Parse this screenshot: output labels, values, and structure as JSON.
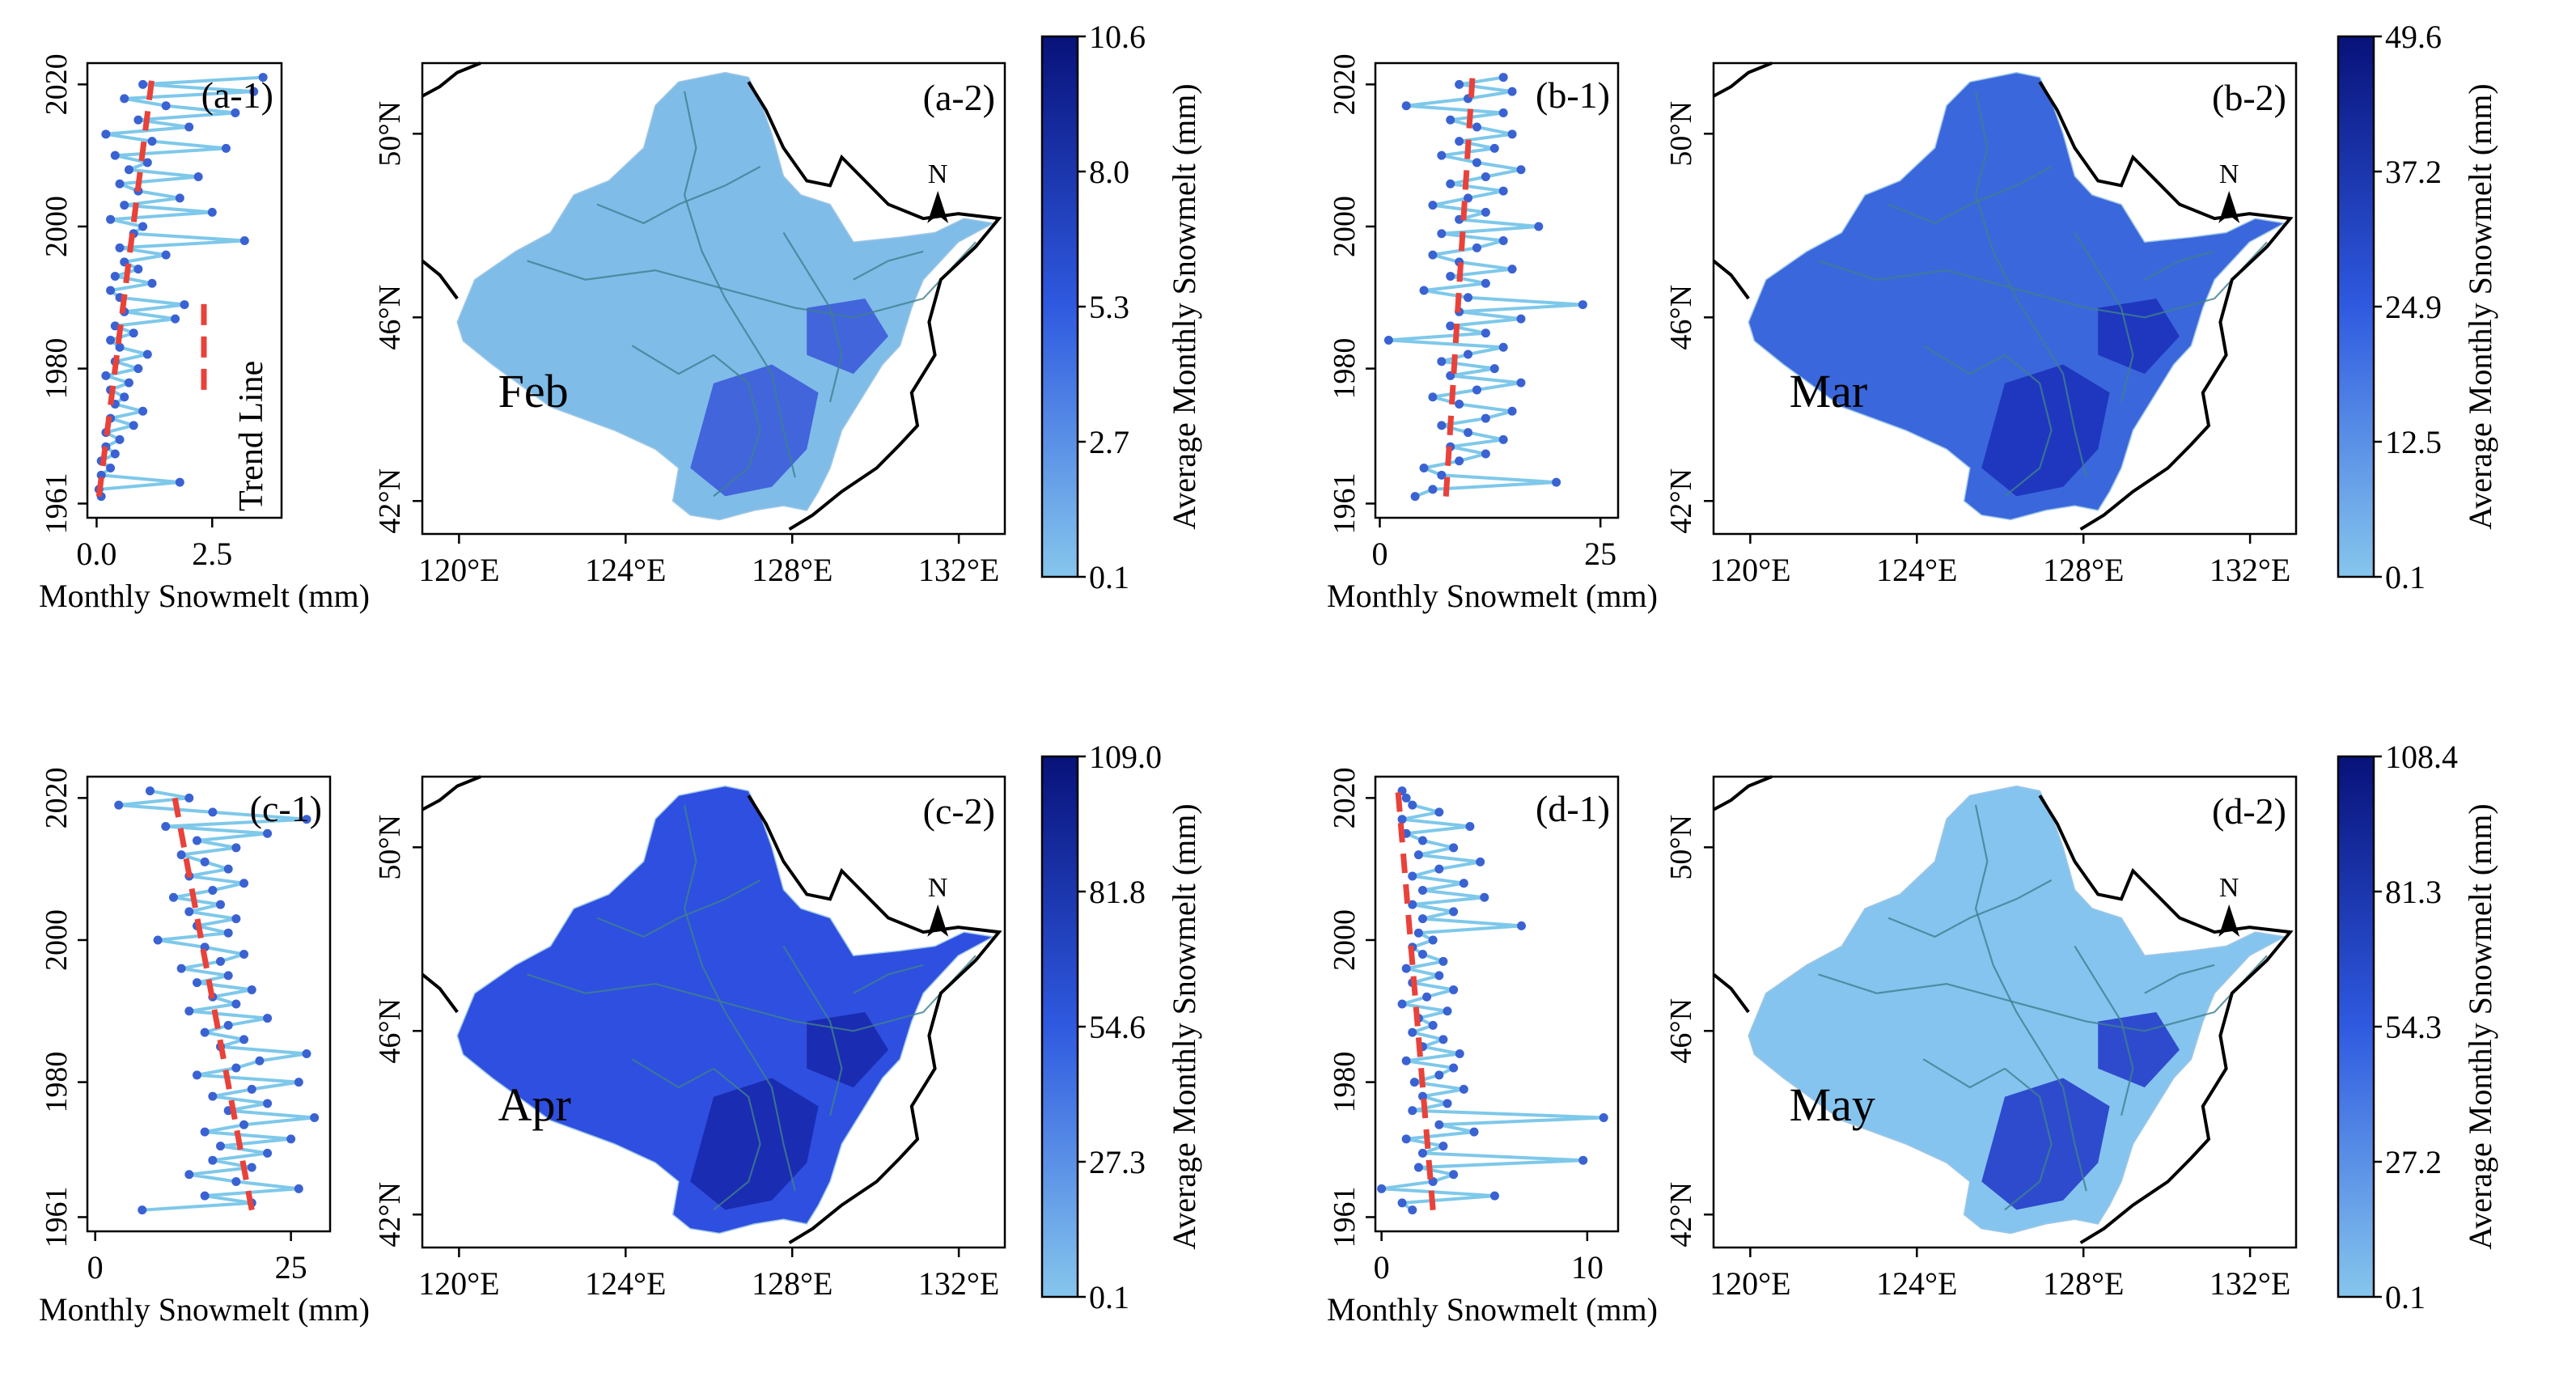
{
  "chart_data": [
    {
      "id": "a",
      "type": "line",
      "panel_label": "(a-1)",
      "xlabel": "Monthly Snowmelt (mm)",
      "xticks": [
        "0.0",
        "2.5"
      ],
      "xtick_values": [
        0,
        2.5
      ],
      "xlim": [
        -0.2,
        4.0
      ],
      "yticks": [
        "1961",
        "1980",
        "2000",
        "2020"
      ],
      "ytick_values": [
        1961,
        1980,
        2000,
        2020
      ],
      "ylim": [
        1959,
        2023
      ],
      "legend": "Trend Line",
      "series_color": "#7ec8ea",
      "trend_color": "#e8423a",
      "years": [
        1962,
        1963,
        1964,
        1965,
        1966,
        1967,
        1968,
        1969,
        1970,
        1971,
        1972,
        1973,
        1974,
        1975,
        1976,
        1977,
        1978,
        1979,
        1980,
        1981,
        1982,
        1983,
        1984,
        1985,
        1986,
        1987,
        1988,
        1989,
        1990,
        1991,
        1992,
        1993,
        1994,
        1995,
        1996,
        1997,
        1998,
        1999,
        2000,
        2001,
        2002,
        2003,
        2004,
        2005,
        2006,
        2007,
        2008,
        2009,
        2010,
        2011,
        2012,
        2013,
        2014,
        2015,
        2016,
        2017,
        2018,
        2019,
        2020,
        2021
      ],
      "values": [
        0.1,
        0.05,
        1.8,
        0.1,
        0.3,
        0.1,
        0.4,
        0.2,
        0.5,
        0.2,
        0.8,
        0.3,
        1.0,
        0.4,
        0.6,
        0.3,
        0.7,
        0.2,
        0.9,
        0.4,
        1.1,
        0.5,
        0.3,
        0.8,
        0.4,
        1.7,
        0.6,
        1.9,
        0.5,
        0.3,
        1.2,
        0.4,
        0.9,
        0.6,
        1.5,
        0.5,
        3.2,
        0.8,
        1.0,
        0.3,
        2.5,
        0.6,
        1.8,
        0.9,
        0.5,
        2.2,
        0.7,
        1.1,
        0.4,
        2.8,
        1.2,
        0.2,
        2.0,
        0.9,
        3.0,
        1.5,
        0.6,
        3.4,
        1.0,
        3.6
      ],
      "trend": [
        [
          1962,
          0.05
        ],
        [
          2021,
          1.2
        ]
      ]
    },
    {
      "id": "b",
      "type": "line",
      "panel_label": "(b-1)",
      "xlabel": "Monthly Snowmelt (mm)",
      "xticks": [
        "0",
        "25"
      ],
      "xtick_values": [
        0,
        25
      ],
      "xlim": [
        -0.5,
        27
      ],
      "yticks": [
        "1961",
        "1980",
        "2000",
        "2020"
      ],
      "ytick_values": [
        1961,
        1980,
        2000,
        2020
      ],
      "ylim": [
        1959,
        2023
      ],
      "series_color": "#7ec8ea",
      "trend_color": "#e8423a",
      "years": [
        1962,
        1963,
        1964,
        1965,
        1966,
        1967,
        1968,
        1969,
        1970,
        1971,
        1972,
        1973,
        1974,
        1975,
        1976,
        1977,
        1978,
        1979,
        1980,
        1981,
        1982,
        1983,
        1984,
        1985,
        1986,
        1987,
        1988,
        1989,
        1990,
        1991,
        1992,
        1993,
        1994,
        1995,
        1996,
        1997,
        1998,
        1999,
        2000,
        2001,
        2002,
        2003,
        2004,
        2005,
        2006,
        2007,
        2008,
        2009,
        2010,
        2011,
        2012,
        2013,
        2014,
        2015,
        2016,
        2017,
        2018,
        2019,
        2020,
        2021
      ],
      "values": [
        4,
        6,
        20,
        7,
        5,
        9,
        12,
        8,
        14,
        10,
        7,
        12,
        15,
        9,
        6,
        11,
        16,
        8,
        13,
        7,
        10,
        14,
        1,
        12,
        8,
        16,
        9,
        23,
        10,
        5,
        12,
        8,
        15,
        9,
        6,
        11,
        14,
        7,
        18,
        9,
        12,
        6,
        10,
        14,
        8,
        12,
        16,
        11,
        7,
        13,
        9,
        15,
        11,
        8,
        14,
        3,
        10,
        15,
        9,
        14
      ],
      "trend": [
        [
          1962,
          7.5
        ],
        [
          2021,
          10.5
        ]
      ]
    },
    {
      "id": "c",
      "type": "line",
      "panel_label": "(c-1)",
      "xlabel": "Monthly Snowmelt (mm)",
      "xticks": [
        "0",
        "25"
      ],
      "xtick_values": [
        0,
        25
      ],
      "xlim": [
        -1,
        30
      ],
      "yticks": [
        "1961",
        "1980",
        "2000",
        "2020"
      ],
      "ytick_values": [
        1961,
        1980,
        2000,
        2020
      ],
      "ylim": [
        1959,
        2023
      ],
      "series_color": "#7ec8ea",
      "trend_color": "#e8423a",
      "years": [
        1962,
        1963,
        1964,
        1965,
        1966,
        1967,
        1968,
        1969,
        1970,
        1971,
        1972,
        1973,
        1974,
        1975,
        1976,
        1977,
        1978,
        1979,
        1980,
        1981,
        1982,
        1983,
        1984,
        1985,
        1986,
        1987,
        1988,
        1989,
        1990,
        1991,
        1992,
        1993,
        1994,
        1995,
        1996,
        1997,
        1998,
        1999,
        2000,
        2001,
        2002,
        2003,
        2004,
        2005,
        2006,
        2007,
        2008,
        2009,
        2010,
        2011,
        2012,
        2013,
        2014,
        2015,
        2016,
        2017,
        2018,
        2019,
        2020,
        2021
      ],
      "values": [
        6,
        20,
        14,
        26,
        18,
        12,
        20,
        15,
        22,
        16,
        25,
        14,
        19,
        28,
        17,
        22,
        15,
        20,
        26,
        13,
        18,
        21,
        27,
        16,
        19,
        14,
        17,
        22,
        12,
        18,
        15,
        20,
        13,
        17,
        11,
        16,
        19,
        14,
        8,
        17,
        13,
        18,
        12,
        16,
        10,
        15,
        19,
        12,
        17,
        14,
        11,
        18,
        13,
        22,
        9,
        27,
        15,
        3,
        12,
        7
      ],
      "trend": [
        [
          1962,
          20
        ],
        [
          2021,
          10
        ]
      ]
    },
    {
      "id": "d",
      "type": "line",
      "panel_label": "(d-1)",
      "xlabel": "Monthly Snowmelt (mm)",
      "xticks": [
        "0",
        "10"
      ],
      "xtick_values": [
        0,
        10
      ],
      "xlim": [
        -0.3,
        11.5
      ],
      "yticks": [
        "1961",
        "1980",
        "2000",
        "2020"
      ],
      "ytick_values": [
        1961,
        1980,
        2000,
        2020
      ],
      "ylim": [
        1959,
        2023
      ],
      "series_color": "#7ec8ea",
      "trend_color": "#e8423a",
      "years": [
        1962,
        1963,
        1964,
        1965,
        1966,
        1967,
        1968,
        1969,
        1970,
        1971,
        1972,
        1973,
        1974,
        1975,
        1976,
        1977,
        1978,
        1979,
        1980,
        1981,
        1982,
        1983,
        1984,
        1985,
        1986,
        1987,
        1988,
        1989,
        1990,
        1991,
        1992,
        1993,
        1994,
        1995,
        1996,
        1997,
        1998,
        1999,
        2000,
        2001,
        2002,
        2003,
        2004,
        2005,
        2006,
        2007,
        2008,
        2009,
        2010,
        2011,
        2012,
        2013,
        2014,
        2015,
        2016,
        2017,
        2018,
        2019,
        2020,
        2021
      ],
      "values": [
        1.5,
        1.0,
        5.5,
        0.0,
        2.5,
        3.5,
        1.8,
        9.8,
        2.0,
        3.0,
        1.2,
        4.5,
        2.8,
        10.8,
        1.5,
        3.2,
        2.0,
        4.0,
        1.6,
        2.8,
        3.5,
        1.2,
        3.8,
        2.0,
        3.0,
        1.5,
        2.5,
        1.8,
        3.2,
        1.0,
        2.2,
        3.5,
        1.5,
        2.8,
        1.2,
        3.0,
        2.0,
        1.5,
        2.5,
        1.8,
        6.8,
        2.0,
        3.5,
        1.5,
        5.0,
        2.0,
        4.0,
        1.5,
        2.8,
        4.8,
        1.8,
        3.5,
        2.0,
        1.2,
        4.3,
        1.0,
        2.8,
        1.5,
        1.2,
        1.0
      ],
      "trend": [
        [
          1962,
          2.5
        ],
        [
          2021,
          0.8
        ]
      ]
    }
  ],
  "maps": [
    {
      "id": "a",
      "panel_label": "(a-2)",
      "month": "Feb",
      "colorbar_ticks": [
        "0.1",
        "2.7",
        "5.3",
        "8.0",
        "10.6"
      ],
      "colorbar_label": "Average Monthly Snowmelt (mm)",
      "north_label": "N",
      "low_color": "#86c6ec",
      "high_color": "#08127a",
      "base_fill": "#7fbce8",
      "hot_fill": "#3756d8"
    },
    {
      "id": "b",
      "panel_label": "(b-2)",
      "month": "Mar",
      "colorbar_ticks": [
        "0.1",
        "12.5",
        "24.9",
        "37.2",
        "49.6"
      ],
      "colorbar_label": "Average Monthly Snowmelt (mm)",
      "north_label": "N",
      "low_color": "#86c6ec",
      "high_color": "#08127a",
      "base_fill": "#3a67dc",
      "hot_fill": "#1b2fb8"
    },
    {
      "id": "c",
      "panel_label": "(c-2)",
      "month": "Apr",
      "colorbar_ticks": [
        "0.1",
        "27.3",
        "54.6",
        "81.8",
        "109.0"
      ],
      "colorbar_label": "Average Monthly Snowmelt (mm)",
      "north_label": "N",
      "low_color": "#86c6ec",
      "high_color": "#08127a",
      "base_fill": "#2e4fe0",
      "hot_fill": "#1626a8"
    },
    {
      "id": "d",
      "panel_label": "(d-2)",
      "month": "May",
      "colorbar_ticks": [
        "0.1",
        "27.2",
        "54.3",
        "81.3",
        "108.4"
      ],
      "colorbar_label": "Average Monthly Snowmelt (mm)",
      "north_label": "N",
      "low_color": "#86c6ec",
      "high_color": "#08127a",
      "base_fill": "#85c4ee",
      "hot_fill": "#1e36c8"
    }
  ],
  "map_axes": {
    "xticks": [
      "120°E",
      "124°E",
      "128°E",
      "132°E"
    ],
    "yticks": [
      "42°N",
      "46°N",
      "50°N"
    ]
  }
}
